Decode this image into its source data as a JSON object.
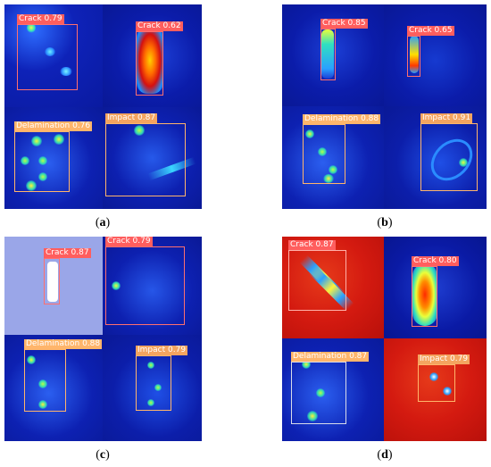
{
  "panels": {
    "a": {
      "caption_open": "(",
      "caption_letter": "a",
      "caption_close": ")",
      "detections": [
        {
          "label": "Crack",
          "score": "0.79"
        },
        {
          "label": "Crack",
          "score": "0.62"
        },
        {
          "label": "Delamination",
          "score": "0.76"
        },
        {
          "label": "Impact",
          "score": "0.87"
        }
      ]
    },
    "b": {
      "caption_open": "(",
      "caption_letter": "b",
      "caption_close": ")",
      "detections": [
        {
          "label": "Crack",
          "score": "0.85"
        },
        {
          "label": "Crack",
          "score": "0.65"
        },
        {
          "label": "Delamination",
          "score": "0.88"
        },
        {
          "label": "Impact",
          "score": "0.91"
        }
      ]
    },
    "c": {
      "caption_open": "(",
      "caption_letter": "c",
      "caption_close": ")",
      "detections": [
        {
          "label": "Crack",
          "score": "0.87"
        },
        {
          "label": "Crack",
          "score": "0.79"
        },
        {
          "label": "Delamination",
          "score": "0.88"
        },
        {
          "label": "Impact",
          "score": "0.79"
        }
      ]
    },
    "d": {
      "caption_open": "(",
      "caption_letter": "d",
      "caption_close": ")",
      "detections": [
        {
          "label": "Crack",
          "score": "0.87"
        },
        {
          "label": "Crack",
          "score": "0.80"
        },
        {
          "label": "Delamination",
          "score": "0.87"
        },
        {
          "label": "Impact",
          "score": "0.79"
        }
      ]
    }
  },
  "colors": {
    "crack_box": "#ff6f6f",
    "delamination_box": "#ffb56b",
    "impact_box": "#ffb56b",
    "background_blue": "#0a1a9e",
    "thermal_red": "#d41a10"
  }
}
